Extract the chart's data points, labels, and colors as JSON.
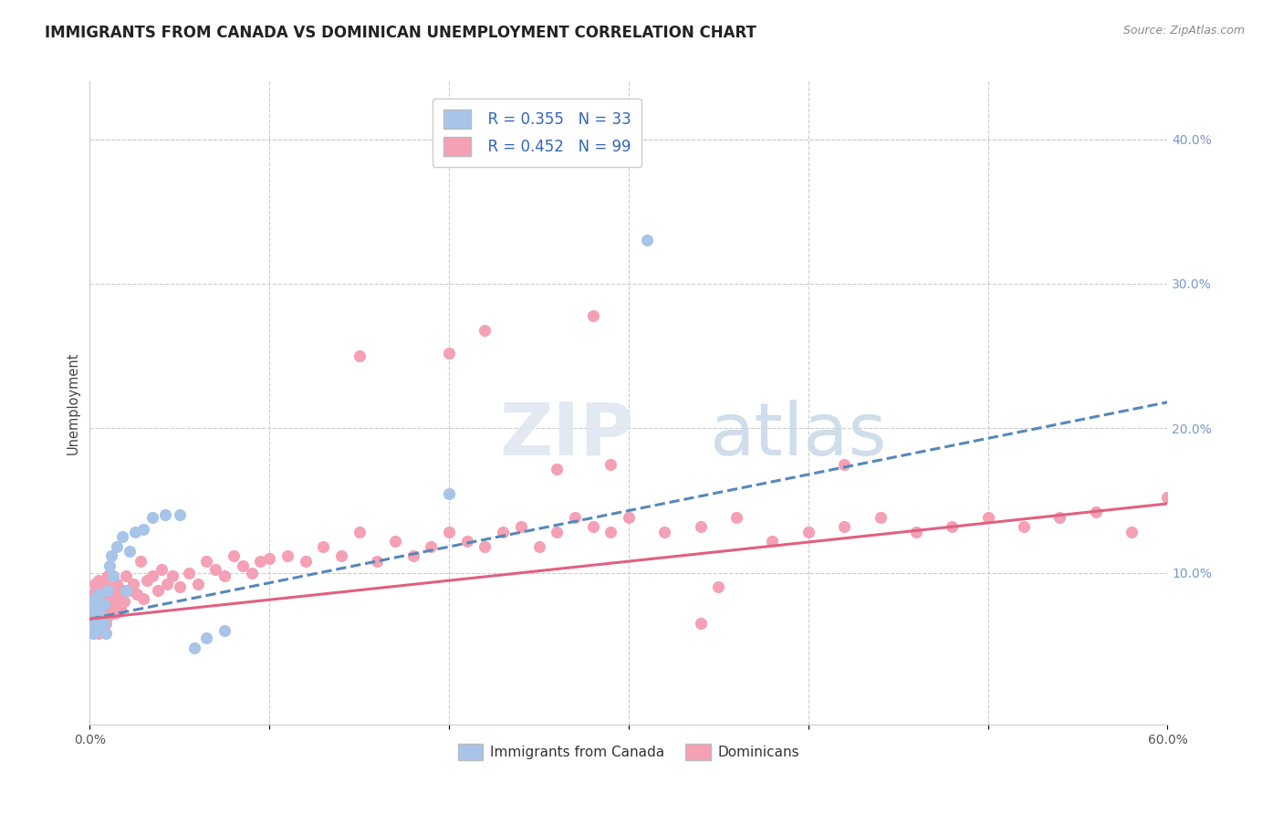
{
  "title": "IMMIGRANTS FROM CANADA VS DOMINICAN UNEMPLOYMENT CORRELATION CHART",
  "source": "Source: ZipAtlas.com",
  "ylabel": "Unemployment",
  "xlim": [
    0,
    0.6
  ],
  "ylim": [
    -0.005,
    0.44
  ],
  "canada_color": "#a8c4e8",
  "dominican_color": "#f4a0b5",
  "canada_line_color": "#5588bb",
  "dominican_line_color": "#e06080",
  "r_canada": 0.355,
  "n_canada": 33,
  "r_dominican": 0.452,
  "n_dominican": 99,
  "canada_scatter_x": [
    0.001,
    0.001,
    0.002,
    0.002,
    0.003,
    0.003,
    0.004,
    0.004,
    0.005,
    0.005,
    0.006,
    0.007,
    0.008,
    0.008,
    0.009,
    0.01,
    0.011,
    0.012,
    0.013,
    0.015,
    0.018,
    0.02,
    0.022,
    0.025,
    0.03,
    0.035,
    0.042,
    0.05,
    0.058,
    0.065,
    0.075,
    0.2,
    0.31
  ],
  "canada_scatter_y": [
    0.065,
    0.075,
    0.058,
    0.078,
    0.068,
    0.082,
    0.062,
    0.072,
    0.07,
    0.085,
    0.075,
    0.068,
    0.078,
    0.065,
    0.058,
    0.088,
    0.105,
    0.112,
    0.098,
    0.118,
    0.125,
    0.088,
    0.115,
    0.128,
    0.13,
    0.138,
    0.14,
    0.14,
    0.048,
    0.055,
    0.06,
    0.155,
    0.33
  ],
  "dominican_scatter_x": [
    0.001,
    0.001,
    0.002,
    0.002,
    0.002,
    0.003,
    0.003,
    0.003,
    0.004,
    0.004,
    0.004,
    0.005,
    0.005,
    0.005,
    0.006,
    0.006,
    0.007,
    0.007,
    0.008,
    0.008,
    0.009,
    0.009,
    0.01,
    0.01,
    0.011,
    0.012,
    0.013,
    0.014,
    0.015,
    0.016,
    0.017,
    0.018,
    0.019,
    0.02,
    0.022,
    0.024,
    0.026,
    0.028,
    0.03,
    0.032,
    0.035,
    0.038,
    0.04,
    0.043,
    0.046,
    0.05,
    0.055,
    0.06,
    0.065,
    0.07,
    0.075,
    0.08,
    0.085,
    0.09,
    0.095,
    0.1,
    0.11,
    0.12,
    0.13,
    0.14,
    0.15,
    0.16,
    0.17,
    0.18,
    0.19,
    0.2,
    0.21,
    0.22,
    0.23,
    0.24,
    0.25,
    0.26,
    0.27,
    0.28,
    0.29,
    0.3,
    0.32,
    0.34,
    0.36,
    0.38,
    0.4,
    0.42,
    0.44,
    0.46,
    0.48,
    0.5,
    0.52,
    0.54,
    0.56,
    0.58,
    0.6,
    0.2,
    0.22,
    0.26,
    0.28,
    0.29,
    0.34,
    0.35,
    0.42,
    0.15
  ],
  "dominican_scatter_y": [
    0.068,
    0.078,
    0.06,
    0.085,
    0.072,
    0.068,
    0.08,
    0.092,
    0.065,
    0.075,
    0.088,
    0.058,
    0.08,
    0.095,
    0.072,
    0.085,
    0.068,
    0.09,
    0.075,
    0.082,
    0.065,
    0.092,
    0.07,
    0.098,
    0.082,
    0.088,
    0.078,
    0.072,
    0.092,
    0.082,
    0.075,
    0.088,
    0.08,
    0.098,
    0.088,
    0.092,
    0.085,
    0.108,
    0.082,
    0.095,
    0.098,
    0.088,
    0.102,
    0.092,
    0.098,
    0.09,
    0.1,
    0.092,
    0.108,
    0.102,
    0.098,
    0.112,
    0.105,
    0.1,
    0.108,
    0.11,
    0.112,
    0.108,
    0.118,
    0.112,
    0.128,
    0.108,
    0.122,
    0.112,
    0.118,
    0.128,
    0.122,
    0.118,
    0.128,
    0.132,
    0.118,
    0.128,
    0.138,
    0.132,
    0.128,
    0.138,
    0.128,
    0.132,
    0.138,
    0.122,
    0.128,
    0.132,
    0.138,
    0.128,
    0.132,
    0.138,
    0.132,
    0.138,
    0.142,
    0.128,
    0.152,
    0.252,
    0.268,
    0.172,
    0.278,
    0.175,
    0.065,
    0.09,
    0.175,
    0.25
  ]
}
